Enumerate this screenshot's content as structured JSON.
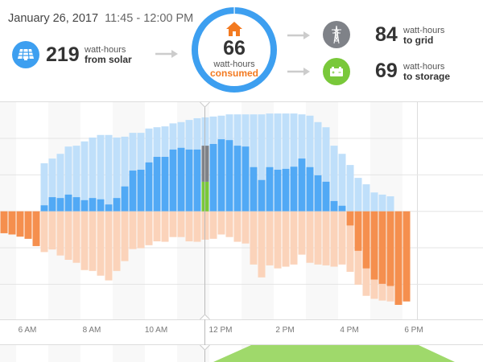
{
  "header": {
    "date": "January 26, 2017",
    "time_range": "11:45 - 12:00 PM"
  },
  "solar": {
    "value": "219",
    "unit": "watt-hours",
    "label": "from solar",
    "icon": "solar-panel-icon"
  },
  "consumed": {
    "value": "66",
    "unit": "watt-hours",
    "label": "consumed",
    "icon": "house-icon"
  },
  "grid": {
    "value": "84",
    "unit": "watt-hours",
    "label": "to grid",
    "icon": "power-tower-icon"
  },
  "storage": {
    "value": "69",
    "unit": "watt-hours",
    "label": "to storage",
    "icon": "battery-icon"
  },
  "colors": {
    "solar_total": "#bfdffa",
    "solar_excess": "#51a9f5",
    "consumption": "#fbd3ba",
    "grid_import": "#f58f4e",
    "to_grid": "#7f8288",
    "to_storage": "#79c83a",
    "ring": "#3d9ff0",
    "consumed_accent": "#f37a20"
  },
  "chart_data": {
    "type": "bar",
    "interval_minutes": 15,
    "start_time": "5:15 AM",
    "x_tick_labels": [
      "6 AM",
      "8 AM",
      "10 AM",
      "12 PM",
      "2 PM",
      "4 PM",
      "6 PM"
    ],
    "selected_index": 25,
    "unit": "watt-hours",
    "series": [
      {
        "values": [
          0,
          0,
          0,
          0,
          0,
          112,
          123,
          134,
          151,
          153,
          163,
          172,
          178,
          178,
          172,
          174,
          183,
          183,
          193,
          196,
          198,
          205,
          208,
          213,
          217,
          219,
          221,
          223,
          226,
          226,
          226,
          226,
          226,
          228,
          228,
          228,
          228,
          226,
          223,
          208,
          196,
          153,
          134,
          108,
          78,
          63,
          44,
          39,
          35,
          0,
          0
        ]
      },
      {
        "values": [
          0,
          0,
          0,
          0,
          0,
          14,
          33,
          31,
          39,
          33,
          26,
          31,
          28,
          16,
          31,
          58,
          95,
          97,
          114,
          127,
          127,
          144,
          148,
          144,
          144,
          0,
          157,
          168,
          166,
          153,
          151,
          103,
          73,
          103,
          97,
          99,
          104,
          123,
          103,
          84,
          69,
          24,
          13,
          0,
          0,
          0,
          0,
          0,
          0,
          0,
          0
        ]
      },
      {
        "values": [
          -51,
          -54,
          -59,
          -64,
          -81,
          -95,
          -89,
          -103,
          -113,
          -120,
          -137,
          -139,
          -150,
          -161,
          -139,
          -116,
          -88,
          -86,
          -79,
          -70,
          -71,
          -60,
          -60,
          -70,
          -71,
          -66,
          -64,
          -54,
          -60,
          -71,
          -75,
          -124,
          -154,
          -126,
          -133,
          -129,
          -124,
          -101,
          -120,
          -124,
          -126,
          -129,
          -124,
          -141,
          -171,
          -197,
          -204,
          -208,
          -210,
          -218,
          -210
        ]
      },
      {
        "values": [
          -51,
          -54,
          -59,
          -64,
          -81,
          0,
          0,
          0,
          0,
          0,
          0,
          0,
          0,
          0,
          0,
          0,
          0,
          0,
          0,
          0,
          0,
          0,
          0,
          0,
          0,
          0,
          0,
          0,
          0,
          0,
          0,
          0,
          0,
          0,
          0,
          0,
          0,
          0,
          0,
          0,
          0,
          0,
          0,
          -33,
          -92,
          -133,
          -159,
          -169,
          -174,
          -218,
          -210
        ]
      }
    ],
    "selected_breakdown": {
      "to_grid": 84,
      "to_storage": 69,
      "consumed": 66
    },
    "grid": true
  }
}
